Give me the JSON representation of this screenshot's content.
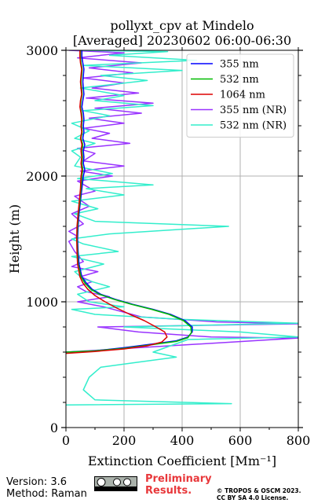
{
  "chart_data": {
    "type": "line",
    "title": "pollyxt_cpv at Mindelo",
    "subtitle": "[Averaged] 20230602 06:00-06:30",
    "xlabel": "Extinction Coefficient [Mm⁻¹]",
    "ylabel": "Height (m)",
    "xlim": [
      0,
      800
    ],
    "ylim": [
      0,
      3000
    ],
    "x_ticks": [
      0,
      200,
      400,
      600,
      800
    ],
    "y_ticks": [
      0,
      1000,
      2000,
      3000
    ],
    "grid": true,
    "legend_position": "top-right",
    "series": [
      {
        "name": "355 nm",
        "color": "#0000ff",
        "points": [
          [
            0,
            600
          ],
          [
            100,
            610
          ],
          [
            200,
            635
          ],
          [
            300,
            665
          ],
          [
            380,
            690
          ],
          [
            420,
            720
          ],
          [
            435,
            760
          ],
          [
            435,
            800
          ],
          [
            410,
            850
          ],
          [
            360,
            900
          ],
          [
            300,
            940
          ],
          [
            230,
            980
          ],
          [
            170,
            1020
          ],
          [
            120,
            1060
          ],
          [
            90,
            1100
          ],
          [
            70,
            1150
          ],
          [
            55,
            1200
          ],
          [
            45,
            1300
          ],
          [
            42,
            1400
          ],
          [
            40,
            1500
          ],
          [
            42,
            1600
          ],
          [
            45,
            1700
          ],
          [
            50,
            1800
          ],
          [
            55,
            1900
          ],
          [
            60,
            2000
          ],
          [
            65,
            2050
          ],
          [
            60,
            2100
          ],
          [
            62,
            2150
          ],
          [
            60,
            2200
          ],
          [
            65,
            2250
          ],
          [
            58,
            2300
          ],
          [
            62,
            2350
          ],
          [
            60,
            2400
          ],
          [
            62,
            2450
          ],
          [
            60,
            2500
          ],
          [
            55,
            2550
          ],
          [
            58,
            2600
          ],
          [
            62,
            2650
          ],
          [
            60,
            2700
          ],
          [
            58,
            2750
          ],
          [
            60,
            2800
          ],
          [
            62,
            2850
          ],
          [
            58,
            2900
          ],
          [
            55,
            2950
          ],
          [
            55,
            3000
          ]
        ]
      },
      {
        "name": "532 nm",
        "color": "#00bb00",
        "points": [
          [
            0,
            600
          ],
          [
            100,
            610
          ],
          [
            200,
            630
          ],
          [
            300,
            660
          ],
          [
            380,
            685
          ],
          [
            420,
            715
          ],
          [
            432,
            755
          ],
          [
            430,
            800
          ],
          [
            405,
            850
          ],
          [
            355,
            900
          ],
          [
            295,
            940
          ],
          [
            225,
            980
          ],
          [
            165,
            1020
          ],
          [
            115,
            1060
          ],
          [
            85,
            1100
          ],
          [
            65,
            1150
          ],
          [
            52,
            1200
          ],
          [
            42,
            1300
          ],
          [
            40,
            1400
          ],
          [
            38,
            1500
          ],
          [
            40,
            1600
          ],
          [
            43,
            1700
          ],
          [
            48,
            1800
          ],
          [
            52,
            1900
          ],
          [
            55,
            2000
          ],
          [
            58,
            2050
          ],
          [
            55,
            2100
          ],
          [
            57,
            2150
          ],
          [
            55,
            2200
          ],
          [
            58,
            2250
          ],
          [
            52,
            2300
          ],
          [
            56,
            2350
          ],
          [
            54,
            2400
          ],
          [
            56,
            2450
          ],
          [
            54,
            2500
          ],
          [
            50,
            2550
          ],
          [
            52,
            2600
          ],
          [
            56,
            2650
          ],
          [
            54,
            2700
          ],
          [
            52,
            2750
          ],
          [
            54,
            2800
          ],
          [
            56,
            2850
          ],
          [
            52,
            2900
          ],
          [
            50,
            2950
          ],
          [
            50,
            3000
          ]
        ]
      },
      {
        "name": "1064 nm",
        "color": "#dd0000",
        "points": [
          [
            0,
            590
          ],
          [
            100,
            605
          ],
          [
            200,
            625
          ],
          [
            280,
            650
          ],
          [
            330,
            680
          ],
          [
            348,
            720
          ],
          [
            340,
            760
          ],
          [
            310,
            800
          ],
          [
            270,
            850
          ],
          [
            220,
            900
          ],
          [
            175,
            950
          ],
          [
            135,
            1000
          ],
          [
            100,
            1050
          ],
          [
            75,
            1100
          ],
          [
            58,
            1150
          ],
          [
            48,
            1200
          ],
          [
            40,
            1300
          ],
          [
            38,
            1400
          ],
          [
            37,
            1500
          ],
          [
            38,
            1600
          ],
          [
            42,
            1700
          ],
          [
            46,
            1800
          ],
          [
            50,
            1900
          ],
          [
            52,
            2000
          ],
          [
            55,
            2050
          ],
          [
            52,
            2100
          ],
          [
            54,
            2150
          ],
          [
            52,
            2200
          ],
          [
            55,
            2250
          ],
          [
            50,
            2300
          ],
          [
            54,
            2350
          ],
          [
            52,
            2400
          ],
          [
            54,
            2450
          ],
          [
            52,
            2500
          ],
          [
            48,
            2550
          ],
          [
            50,
            2600
          ],
          [
            54,
            2650
          ],
          [
            52,
            2700
          ],
          [
            50,
            2750
          ],
          [
            52,
            2800
          ],
          [
            54,
            2850
          ],
          [
            50,
            2900
          ],
          [
            48,
            2950
          ],
          [
            48,
            3000
          ]
        ]
      },
      {
        "name": "355 nm (NR)",
        "color": "#9933ff",
        "points": [
          [
            0,
            600
          ],
          [
            800,
            712
          ],
          [
            500,
            720
          ],
          [
            250,
            760
          ],
          [
            110,
            800
          ],
          [
            800,
            825
          ],
          [
            520,
            840
          ],
          [
            260,
            880
          ],
          [
            130,
            960
          ],
          [
            40,
            1000
          ],
          [
            150,
            1040
          ],
          [
            70,
            1080
          ],
          [
            40,
            1120
          ],
          [
            90,
            1160
          ],
          [
            50,
            1200
          ],
          [
            110,
            1240
          ],
          [
            20,
            1280
          ],
          [
            60,
            1320
          ],
          [
            30,
            1400
          ],
          [
            10,
            1480
          ],
          [
            40,
            1520
          ],
          [
            10,
            1560
          ],
          [
            60,
            1620
          ],
          [
            20,
            1700
          ],
          [
            80,
            1760
          ],
          [
            30,
            1840
          ],
          [
            100,
            1880
          ],
          [
            40,
            1960
          ],
          [
            160,
            2000
          ],
          [
            50,
            2040
          ],
          [
            200,
            2080
          ],
          [
            60,
            2120
          ],
          [
            100,
            2180
          ],
          [
            40,
            2220
          ],
          [
            220,
            2260
          ],
          [
            90,
            2300
          ],
          [
            150,
            2340
          ],
          [
            60,
            2380
          ],
          [
            200,
            2420
          ],
          [
            80,
            2460
          ],
          [
            260,
            2500
          ],
          [
            100,
            2540
          ],
          [
            300,
            2580
          ],
          [
            70,
            2620
          ],
          [
            250,
            2660
          ],
          [
            90,
            2700
          ],
          [
            200,
            2740
          ],
          [
            60,
            2780
          ],
          [
            230,
            2820
          ],
          [
            80,
            2860
          ],
          [
            260,
            2900
          ],
          [
            40,
            2940
          ],
          [
            200,
            2980
          ],
          [
            10,
            3000
          ]
        ]
      },
      {
        "name": "532 nm (NR)",
        "color": "#33eecc",
        "points": [
          [
            0,
            180
          ],
          [
            570,
            190
          ],
          [
            100,
            220
          ],
          [
            60,
            300
          ],
          [
            80,
            400
          ],
          [
            120,
            480
          ],
          [
            250,
            520
          ],
          [
            380,
            560
          ],
          [
            300,
            600
          ],
          [
            420,
            700
          ],
          [
            800,
            720
          ],
          [
            600,
            760
          ],
          [
            200,
            800
          ],
          [
            800,
            830
          ],
          [
            400,
            860
          ],
          [
            100,
            900
          ],
          [
            20,
            940
          ],
          [
            200,
            960
          ],
          [
            80,
            1000
          ],
          [
            40,
            1060
          ],
          [
            150,
            1120
          ],
          [
            60,
            1180
          ],
          [
            30,
            1240
          ],
          [
            130,
            1300
          ],
          [
            20,
            1360
          ],
          [
            180,
            1400
          ],
          [
            60,
            1460
          ],
          [
            20,
            1500
          ],
          [
            150,
            1540
          ],
          [
            560,
            1600
          ],
          [
            100,
            1640
          ],
          [
            30,
            1700
          ],
          [
            110,
            1740
          ],
          [
            20,
            1800
          ],
          [
            200,
            1850
          ],
          [
            70,
            1900
          ],
          [
            300,
            1930
          ],
          [
            40,
            1980
          ],
          [
            160,
            2020
          ],
          [
            30,
            2080
          ],
          [
            50,
            2150
          ],
          [
            20,
            2200
          ],
          [
            100,
            2260
          ],
          [
            30,
            2300
          ],
          [
            80,
            2360
          ],
          [
            20,
            2420
          ],
          [
            150,
            2480
          ],
          [
            60,
            2520
          ],
          [
            300,
            2560
          ],
          [
            100,
            2600
          ],
          [
            200,
            2640
          ],
          [
            50,
            2700
          ],
          [
            280,
            2760
          ],
          [
            120,
            2800
          ],
          [
            400,
            2840
          ],
          [
            60,
            2880
          ],
          [
            450,
            2920
          ],
          [
            150,
            2960
          ],
          [
            350,
            2990
          ],
          [
            50,
            3000
          ]
        ]
      }
    ]
  },
  "footer": {
    "version": "Version: 3.6",
    "method": "Method: Raman",
    "preliminary_line1": "Preliminary",
    "preliminary_line2": "Results.",
    "copyright_line1": "© TROPOS & OSCM 2023.",
    "copyright_line2": "CC BY SA 4.0 License.",
    "license_badge": "cc-by-sa-icon"
  }
}
